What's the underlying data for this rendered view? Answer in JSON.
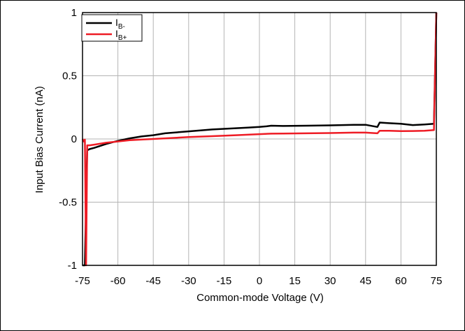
{
  "chart_data": {
    "type": "line",
    "xlabel": "Common-mode Voltage (V)",
    "ylabel": "Input Bias Current (nA)",
    "xlim": [
      -75,
      75
    ],
    "ylim": [
      -1,
      1
    ],
    "x_ticks": [
      -75,
      -60,
      -45,
      -30,
      -15,
      0,
      15,
      30,
      45,
      60,
      75
    ],
    "x_tick_labels": [
      "-75",
      "-60",
      "-45",
      "-30",
      "-15",
      "0",
      "15",
      "30",
      "45",
      "60",
      "75"
    ],
    "y_ticks": [
      -1,
      -0.5,
      0,
      0.5,
      1
    ],
    "y_tick_labels": [
      "-1",
      "-0.5",
      "0",
      "0.5",
      "1"
    ],
    "grid": true,
    "legend_position": "top-left",
    "series": [
      {
        "name_main": "I",
        "name_sub": "B-",
        "color": "#000000",
        "x": [
          -75,
          -74,
          -73.5,
          -73,
          -72,
          -70,
          -65,
          -60,
          -55,
          -50,
          -45,
          -40,
          -30,
          -20,
          -15,
          -10,
          -5,
          0,
          3,
          5,
          10,
          20,
          30,
          40,
          45,
          50,
          51,
          55,
          60,
          65,
          70,
          74,
          75
        ],
        "y": [
          -1.0,
          -1.0,
          -0.5,
          -0.09,
          -0.08,
          -0.07,
          -0.04,
          -0.015,
          0.005,
          0.02,
          0.03,
          0.045,
          0.06,
          0.075,
          0.08,
          0.085,
          0.09,
          0.095,
          0.1,
          0.105,
          0.103,
          0.105,
          0.108,
          0.112,
          0.112,
          0.095,
          0.13,
          0.125,
          0.12,
          0.11,
          0.115,
          0.12,
          1.0
        ]
      },
      {
        "name_main": "I",
        "name_sub": "B+",
        "color": "#ee1c25",
        "x": [
          -75,
          -74.5,
          -74,
          -73.5,
          -73,
          -72,
          -70,
          -65,
          -60,
          -55,
          -50,
          -45,
          -40,
          -30,
          -20,
          -10,
          0,
          5,
          10,
          20,
          30,
          40,
          45,
          50,
          51,
          55,
          60,
          65,
          70,
          74,
          75
        ],
        "y": [
          0.0,
          -0.02,
          -0.005,
          -1.0,
          -0.05,
          -0.05,
          -0.045,
          -0.03,
          -0.02,
          -0.01,
          -0.005,
          0.0,
          0.005,
          0.015,
          0.022,
          0.03,
          0.038,
          0.042,
          0.043,
          0.045,
          0.047,
          0.05,
          0.05,
          0.045,
          0.065,
          0.065,
          0.062,
          0.063,
          0.065,
          0.07,
          1.0
        ]
      }
    ]
  }
}
